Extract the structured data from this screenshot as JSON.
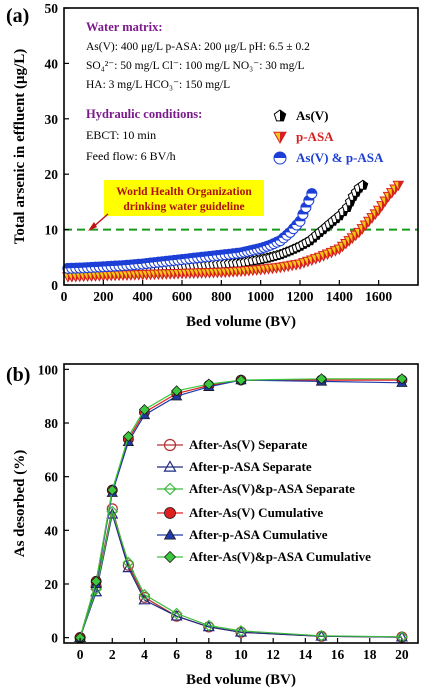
{
  "chart_data": [
    {
      "panel_label": "(a)",
      "type": "scatter",
      "xlabel": "Bed volume (BV)",
      "ylabel": "Total arsenic in effluent (μg/L)",
      "xlim": [
        0,
        1800
      ],
      "ylim": [
        0,
        50
      ],
      "xticks": [
        0,
        200,
        400,
        600,
        800,
        1000,
        1200,
        1400,
        1600
      ],
      "yticks": [
        0,
        10,
        20,
        30,
        40,
        50
      ],
      "info": {
        "water_title": "Water matrix:",
        "water_line1": "As(V): 400 μg/L  p-ASA: 200 μg/L  pH: 6.5 ± 0.2",
        "water_line2": "SO₄²⁻: 50 mg/L  Cl⁻: 100 mg/L  NO₃⁻: 30 mg/L",
        "water_line3": "HA: 3 mg/L  HCO₃⁻: 150 mg/L",
        "hyd_title": "Hydraulic conditions:",
        "hyd_line1": "EBCT: 10 min",
        "hyd_line2": "Feed flow:  6 BV/h"
      },
      "guideline": {
        "value": 10,
        "label_line1": "World Health Organization",
        "label_line2": "drinking water guideline",
        "color": "#1a9a1a"
      },
      "series": [
        {
          "name": "As(V)",
          "marker": "pentagon-half",
          "color": "#000000",
          "x": [
            20,
            100,
            200,
            300,
            400,
            500,
            600,
            700,
            800,
            900,
            1000,
            1050,
            1100,
            1150,
            1200,
            1250,
            1300,
            1350,
            1400,
            1440,
            1470,
            1500,
            1520
          ],
          "y": [
            2.5,
            2.6,
            2.7,
            2.8,
            3.0,
            3.2,
            3.4,
            3.6,
            3.8,
            4.0,
            4.6,
            5.0,
            5.5,
            6.2,
            7.0,
            8.0,
            9.5,
            11.0,
            12.5,
            14.0,
            16.0,
            17.5,
            18.0
          ]
        },
        {
          "name": "p-ASA",
          "marker": "triangle-down-half",
          "color": "#d62020",
          "fill2": "#f5c518",
          "x": [
            20,
            100,
            200,
            300,
            400,
            500,
            600,
            700,
            800,
            900,
            1000,
            1100,
            1200,
            1300,
            1400,
            1450,
            1500,
            1550,
            1600,
            1650,
            1700
          ],
          "y": [
            1.5,
            1.6,
            1.7,
            1.8,
            1.9,
            2.0,
            2.1,
            2.2,
            2.3,
            2.5,
            2.8,
            3.2,
            3.8,
            5.0,
            6.5,
            8.0,
            9.5,
            11.5,
            13.5,
            16.0,
            18.0
          ]
        },
        {
          "name": "As(V) & p-ASA",
          "marker": "circle-half",
          "color": "#1c3fd6",
          "x": [
            20,
            100,
            200,
            300,
            400,
            500,
            600,
            700,
            800,
            900,
            950,
            1000,
            1050,
            1100,
            1150,
            1200,
            1230,
            1260
          ],
          "y": [
            3.0,
            3.1,
            3.3,
            3.5,
            3.8,
            4.2,
            4.6,
            5.0,
            5.4,
            5.8,
            6.2,
            6.6,
            7.2,
            8.0,
            9.5,
            11.5,
            14.0,
            16.5
          ]
        }
      ]
    },
    {
      "panel_label": "(b)",
      "type": "line",
      "xlabel": "Bed volume (BV)",
      "ylabel": "As desorbed (%)",
      "xlim": [
        -1,
        21
      ],
      "ylim": [
        -2,
        102
      ],
      "xticks": [
        0,
        2,
        4,
        6,
        8,
        10,
        12,
        14,
        16,
        18,
        20
      ],
      "yticks": [
        0,
        20,
        40,
        60,
        80,
        100
      ],
      "x": [
        0,
        1,
        2,
        3,
        4,
        6,
        8,
        10,
        15,
        20
      ],
      "series": [
        {
          "name": "After-As(V)  Separate",
          "marker": "circle",
          "filled": false,
          "color": "#b03030",
          "values": [
            0,
            19,
            48,
            27,
            15,
            8,
            4,
            2,
            0.5,
            0.2
          ]
        },
        {
          "name": "After-p-ASA  Separate",
          "marker": "triangle",
          "filled": false,
          "color": "#1f2a80",
          "values": [
            0,
            17,
            46,
            26,
            14,
            8,
            4,
            2,
            0.5,
            0.2
          ]
        },
        {
          "name": "After-As(V)&p-ASA  Separate",
          "marker": "diamond",
          "filled": false,
          "color": "#3cba3c",
          "values": [
            0,
            18,
            47,
            28,
            16,
            9,
            4.5,
            2.5,
            0.7,
            0.3
          ]
        },
        {
          "name": "After-As(V)  Cumulative",
          "marker": "circle",
          "filled": true,
          "color": "#e02020",
          "values": [
            0,
            21,
            55,
            74,
            84,
            91,
            94,
            96,
            96,
            96
          ]
        },
        {
          "name": "After-p-ASA  Cumulative",
          "marker": "triangle",
          "filled": true,
          "color": "#1f3aa8",
          "values": [
            0,
            20,
            54,
            73,
            83,
            90,
            93.5,
            96,
            95.5,
            95
          ]
        },
        {
          "name": "After-As(V)&p-ASA  Cumulative",
          "marker": "diamond",
          "filled": true,
          "color": "#3cc83c",
          "values": [
            0,
            21,
            55,
            75,
            85,
            92,
            94.5,
            96,
            96.5,
            96.5
          ]
        }
      ]
    }
  ]
}
